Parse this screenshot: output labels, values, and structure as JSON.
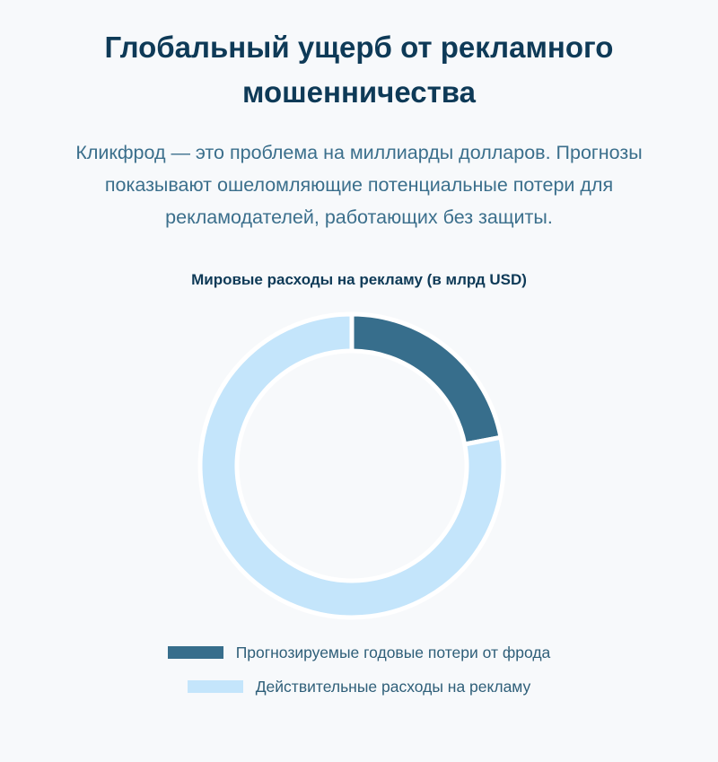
{
  "header": {
    "title": "Глобальный ущерб от рекламного мошенничества",
    "intro": "Кликфрод — это проблема на миллиарды долларов. Прогнозы показывают ошеломляющие потенциальные потери для рекламодателей, работающих без защиты."
  },
  "chart_data": {
    "type": "pie",
    "variant": "doughnut",
    "title": "Мировые расходы на рекламу (в млрд USD)",
    "labels": [
      "Прогнозируемые годовые потери от фрода",
      "Действительные расходы на рекламу"
    ],
    "values": [
      22,
      78
    ],
    "colors": [
      "#376e8c",
      "#c4e5fb"
    ],
    "legend_position": "bottom"
  }
}
